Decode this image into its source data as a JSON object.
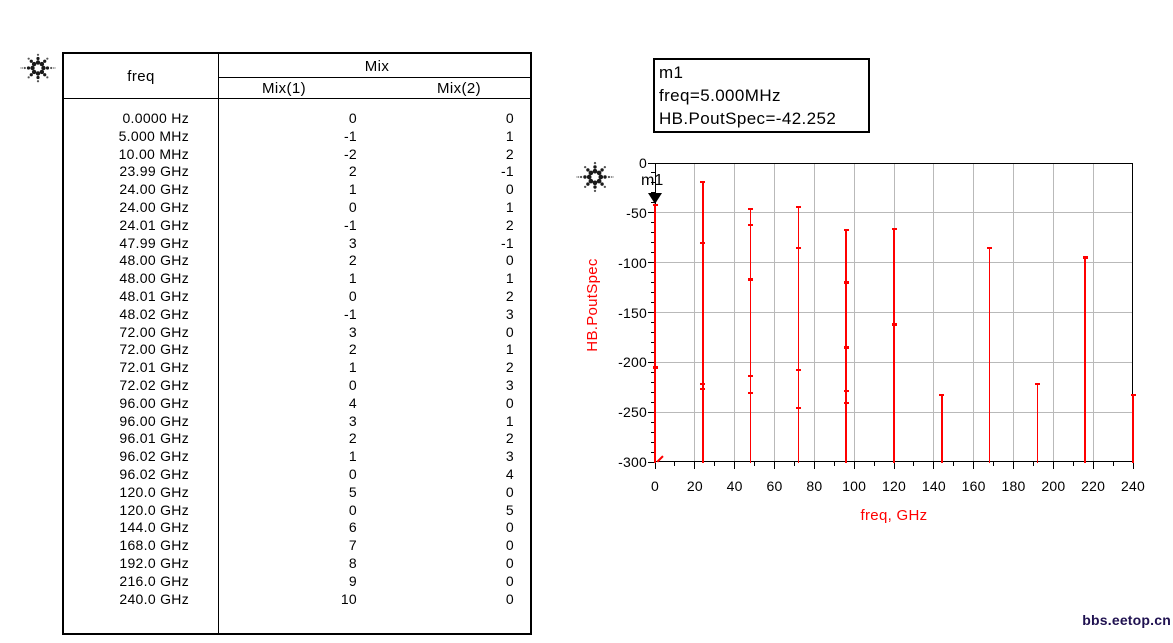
{
  "colors": {
    "trace": "#ff0000",
    "grid": "#b9b9b9",
    "axis": "#000000",
    "axis_title": "#ff0000",
    "watermark": "#1f1150"
  },
  "watermark": "bbs.eetop.cn",
  "table": {
    "col_freq": "freq",
    "col_group": "Mix",
    "col_mix1": "Mix(1)",
    "col_mix2": "Mix(2)",
    "rows": [
      [
        "0.0000 Hz",
        "0",
        "0"
      ],
      [
        "5.000 MHz",
        "-1",
        "1"
      ],
      [
        "10.00 MHz",
        "-2",
        "2"
      ],
      [
        "23.99 GHz",
        "2",
        "-1"
      ],
      [
        "24.00 GHz",
        "1",
        "0"
      ],
      [
        "24.00 GHz",
        "0",
        "1"
      ],
      [
        "24.01 GHz",
        "-1",
        "2"
      ],
      [
        "47.99 GHz",
        "3",
        "-1"
      ],
      [
        "48.00 GHz",
        "2",
        "0"
      ],
      [
        "48.00 GHz",
        "1",
        "1"
      ],
      [
        "48.01 GHz",
        "0",
        "2"
      ],
      [
        "48.02 GHz",
        "-1",
        "3"
      ],
      [
        "72.00 GHz",
        "3",
        "0"
      ],
      [
        "72.00 GHz",
        "2",
        "1"
      ],
      [
        "72.01 GHz",
        "1",
        "2"
      ],
      [
        "72.02 GHz",
        "0",
        "3"
      ],
      [
        "96.00 GHz",
        "4",
        "0"
      ],
      [
        "96.00 GHz",
        "3",
        "1"
      ],
      [
        "96.01 GHz",
        "2",
        "2"
      ],
      [
        "96.02 GHz",
        "1",
        "3"
      ],
      [
        "96.02 GHz",
        "0",
        "4"
      ],
      [
        "120.0 GHz",
        "5",
        "0"
      ],
      [
        "120.0 GHz",
        "0",
        "5"
      ],
      [
        "144.0 GHz",
        "6",
        "0"
      ],
      [
        "168.0 GHz",
        "7",
        "0"
      ],
      [
        "192.0 GHz",
        "8",
        "0"
      ],
      [
        "216.0 GHz",
        "9",
        "0"
      ],
      [
        "240.0 GHz",
        "10",
        "0"
      ]
    ]
  },
  "marker_box": {
    "lines": [
      "m1",
      "freq=5.000MHz",
      "HB.PoutSpec=-42.252"
    ]
  },
  "chart_data": {
    "type": "stem",
    "title": "",
    "xlabel": "freq, GHz",
    "ylabel": "HB.PoutSpec",
    "xlim": [
      0,
      240
    ],
    "ylim": [
      -300,
      0
    ],
    "xticks": [
      0,
      20,
      40,
      60,
      80,
      100,
      120,
      140,
      160,
      180,
      200,
      220,
      240
    ],
    "yticks": [
      0,
      -50,
      -100,
      -150,
      -200,
      -250,
      -300
    ],
    "xtick_minor_step": 10,
    "ytick_minor_step": 10,
    "grid": true,
    "legend": "none",
    "stems": [
      {
        "x": 0,
        "points": [
          -42.252,
          -205,
          -300
        ]
      },
      {
        "x": 24,
        "points": [
          -19,
          -80,
          -222,
          -227
        ]
      },
      {
        "x": 48,
        "points": [
          -46,
          -62,
          -117,
          -214,
          -231
        ]
      },
      {
        "x": 72,
        "points": [
          -44,
          -85,
          -208,
          -246
        ]
      },
      {
        "x": 96,
        "points": [
          -67,
          -120,
          -185,
          -229,
          -241
        ]
      },
      {
        "x": 120,
        "points": [
          -66,
          -162
        ]
      },
      {
        "x": 144,
        "points": [
          -233
        ]
      },
      {
        "x": 168,
        "points": [
          -85
        ]
      },
      {
        "x": 192,
        "points": [
          -222
        ]
      },
      {
        "x": 216,
        "points": [
          -95
        ]
      },
      {
        "x": 240,
        "points": [
          -233
        ]
      }
    ],
    "marker": {
      "name": "m1",
      "x": 0,
      "y": -42.252
    }
  }
}
